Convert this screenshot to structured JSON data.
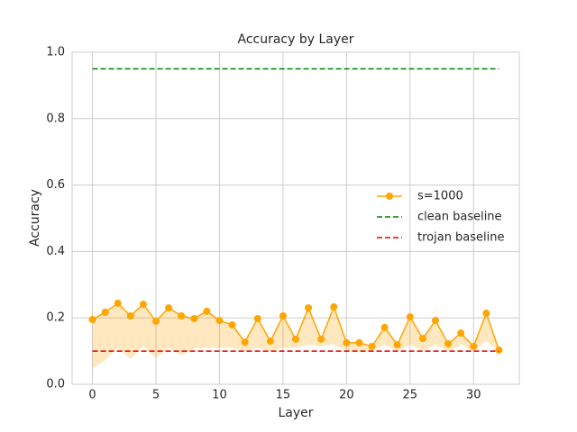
{
  "chart_data": {
    "type": "line",
    "title": "Accuracy by Layer",
    "xlabel": "Layer",
    "ylabel": "Accuracy",
    "x": [
      0,
      1,
      2,
      3,
      4,
      5,
      6,
      7,
      8,
      9,
      10,
      11,
      12,
      13,
      14,
      15,
      16,
      17,
      18,
      19,
      20,
      21,
      22,
      23,
      24,
      25,
      26,
      27,
      28,
      29,
      30,
      31,
      32
    ],
    "series": [
      {
        "name": "s=1000",
        "color": "#ffa500",
        "values": [
          0.195,
          0.217,
          0.244,
          0.206,
          0.241,
          0.19,
          0.23,
          0.206,
          0.198,
          0.22,
          0.192,
          0.179,
          0.127,
          0.198,
          0.13,
          0.206,
          0.136,
          0.23,
          0.136,
          0.233,
          0.125,
          0.125,
          0.114,
          0.171,
          0.119,
          0.203,
          0.138,
          0.192,
          0.122,
          0.154,
          0.114,
          0.214,
          0.103
        ],
        "lower": [
          0.046,
          0.073,
          0.11,
          0.076,
          0.115,
          0.079,
          0.11,
          0.087,
          0.108,
          0.11,
          0.11,
          0.11,
          0.1,
          0.11,
          0.1,
          0.11,
          0.11,
          0.12,
          0.115,
          0.12,
          0.1,
          0.1,
          0.1,
          0.12,
          0.1,
          0.12,
          0.1,
          0.12,
          0.1,
          0.12,
          0.1,
          0.13,
          0.1
        ]
      }
    ],
    "baselines": [
      {
        "name": "clean baseline",
        "color": "#008000",
        "value": 0.95
      },
      {
        "name": "trojan baseline",
        "color": "#e00000",
        "value": 0.1
      }
    ],
    "xlim": [
      -1.6,
      33.6
    ],
    "ylim": [
      0,
      1
    ],
    "xticks": [
      0,
      5,
      10,
      15,
      20,
      25,
      30
    ],
    "yticks": [
      {
        "value": 0,
        "label": "0.0"
      },
      0.2,
      0.4,
      0.6,
      0.8,
      {
        "value": 1,
        "label": "1.0"
      }
    ],
    "grid": true,
    "legend": "right"
  }
}
